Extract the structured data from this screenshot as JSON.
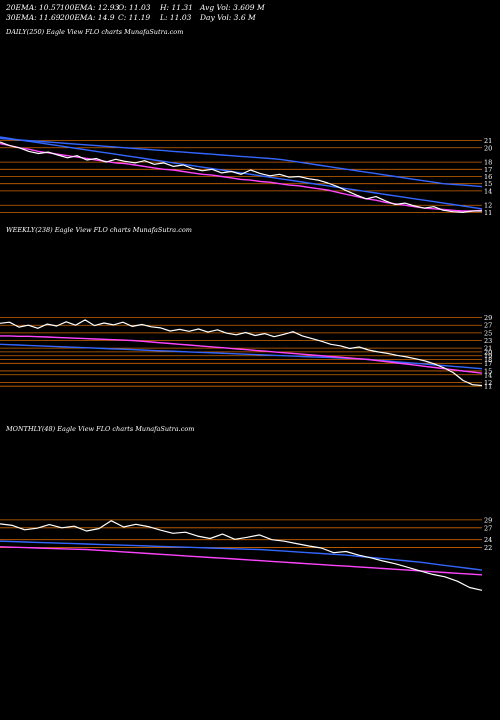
{
  "header": {
    "row1": [
      "20EMA: 10.57",
      "100EMA: 12.93",
      "O: 11.03",
      "H: 11.31",
      "Avg Vol: 3.609  M"
    ],
    "row2": [
      "30EMA: 11.69",
      "200EMA: 14.9",
      "C: 11.19",
      "L: 11.03",
      "Day Vol: 3.6  M"
    ]
  },
  "colors": {
    "background": "#000000",
    "price": "#ffffff",
    "ema_slow": "#ff44ff",
    "ema_mid": "#3366ff",
    "grid_line": "#cc6600"
  },
  "chart_data": [
    {
      "type": "line",
      "title": "DAILY(250) Eagle  View  FLO charts MunafaSutra.com",
      "y_tick_labels": [
        "21",
        "20",
        "18",
        "17",
        "16",
        "15",
        "14",
        "12",
        "11"
      ],
      "ylim": [
        10.5,
        21.5
      ],
      "series": [
        {
          "role": "price",
          "values": [
            20.8,
            20.3,
            20.0,
            19.5,
            19.2,
            19.4,
            19.0,
            18.6,
            18.9,
            18.3,
            18.5,
            18.0,
            18.4,
            18.1,
            17.9,
            18.2,
            17.7,
            17.9,
            17.4,
            17.6,
            17.1,
            16.8,
            17.0,
            16.5,
            16.7,
            16.3,
            16.9,
            16.4,
            16.1,
            16.3,
            15.9,
            16.0,
            15.7,
            15.5,
            15.1,
            14.6,
            14.0,
            13.4,
            12.9,
            13.2,
            12.6,
            12.1,
            12.3,
            11.9,
            11.6,
            11.8,
            11.3,
            11.1,
            11.0,
            11.2,
            11.19
          ]
        },
        {
          "role": "ema",
          "values": [
            21.5,
            21.3,
            21.1,
            20.9,
            20.7,
            20.5,
            20.3,
            20.1,
            19.9,
            19.7,
            19.5,
            19.3,
            19.1,
            18.9,
            18.7,
            18.5,
            18.3,
            18.1,
            17.9,
            17.7,
            17.5,
            17.3,
            17.1,
            16.9,
            16.7,
            16.5,
            16.3,
            16.1,
            15.9,
            15.7,
            15.5,
            15.3,
            15.1,
            14.9,
            14.7,
            14.5,
            14.3,
            14.1,
            13.9,
            13.7,
            13.5,
            13.3,
            13.1,
            12.9,
            12.7,
            12.5,
            12.3,
            12.1,
            11.9,
            11.7,
            11.5
          ]
        },
        {
          "role": "ema",
          "values": [
            20.6,
            20.3,
            20.0,
            19.8,
            19.5,
            19.3,
            19.1,
            18.9,
            18.7,
            18.5,
            18.3,
            18.1,
            17.9,
            17.8,
            17.6,
            17.4,
            17.2,
            17.0,
            16.9,
            16.7,
            16.5,
            16.3,
            16.2,
            16.0,
            15.8,
            15.6,
            15.5,
            15.3,
            15.2,
            15.0,
            14.8,
            14.7,
            14.5,
            14.3,
            14.1,
            13.8,
            13.5,
            13.2,
            12.9,
            12.7,
            12.4,
            12.2,
            12.0,
            11.8,
            11.6,
            11.5,
            11.4,
            11.3,
            11.2,
            11.2,
            11.3
          ]
        },
        {
          "role": "ema",
          "values": [
            21.3,
            21.2,
            21.1,
            21.0,
            20.9,
            20.8,
            20.7,
            20.6,
            20.5,
            20.4,
            20.3,
            20.2,
            20.1,
            20.0,
            19.9,
            19.8,
            19.7,
            19.6,
            19.5,
            19.4,
            19.3,
            19.2,
            19.1,
            19.0,
            18.9,
            18.8,
            18.7,
            18.6,
            18.5,
            18.4,
            18.2,
            18.0,
            17.8,
            17.6,
            17.4,
            17.2,
            17.0,
            16.8,
            16.6,
            16.4,
            16.2,
            16.0,
            15.8,
            15.6,
            15.4,
            15.2,
            15.0,
            14.9,
            14.8,
            14.7,
            14.6
          ]
        }
      ]
    },
    {
      "type": "line",
      "title": "WEEKLY(238) Eagle  View  FLO charts MunafaSutra.com",
      "y_tick_labels": [
        "29",
        "27",
        "25",
        "23",
        "21",
        "20",
        "19",
        "18",
        "17",
        "15",
        "14",
        "12",
        "11"
      ],
      "ylim": [
        10,
        31
      ],
      "series": [
        {
          "role": "price",
          "values": [
            27.5,
            27.8,
            26.5,
            27.0,
            26.2,
            27.3,
            26.8,
            27.9,
            27.0,
            28.4,
            26.9,
            27.6,
            27.1,
            27.8,
            26.7,
            27.2,
            26.6,
            26.3,
            25.5,
            25.9,
            25.4,
            26.0,
            25.2,
            25.8,
            24.9,
            24.5,
            25.1,
            24.3,
            24.8,
            24.0,
            24.6,
            25.3,
            24.2,
            23.5,
            22.8,
            22.0,
            21.6,
            20.9,
            21.3,
            20.5,
            20.0,
            19.6,
            19.1,
            18.7,
            18.2,
            17.6,
            16.8,
            15.8,
            14.5,
            12.5,
            11.4,
            11.19
          ]
        },
        {
          "role": "ema",
          "values": [
            22.0,
            21.9,
            21.8,
            21.7,
            21.6,
            21.5,
            21.4,
            21.3,
            21.2,
            21.1,
            21.0,
            20.9,
            20.8,
            20.7,
            20.6,
            20.5,
            20.4,
            20.3,
            20.2,
            20.1,
            20.0,
            19.9,
            19.8,
            19.7,
            19.6,
            19.5,
            19.4,
            19.3,
            19.2,
            19.1,
            19.0,
            18.9,
            18.8,
            18.7,
            18.6,
            18.5,
            18.4,
            18.3,
            18.2,
            18.0,
            17.8,
            17.6,
            17.4,
            17.2,
            17.0,
            16.8,
            16.6,
            16.4,
            16.2,
            16.0,
            15.8,
            15.6
          ]
        },
        {
          "role": "ema",
          "values": [
            24.2,
            24.2,
            24.1,
            24.1,
            24.0,
            23.9,
            23.8,
            23.7,
            23.6,
            23.5,
            23.4,
            23.3,
            23.2,
            23.1,
            23.0,
            22.8,
            22.6,
            22.4,
            22.2,
            22.0,
            21.8,
            21.6,
            21.4,
            21.2,
            21.0,
            20.8,
            20.6,
            20.4,
            20.2,
            20.0,
            19.8,
            19.6,
            19.4,
            19.2,
            19.0,
            18.8,
            18.6,
            18.4,
            18.2,
            18.0,
            17.7,
            17.4,
            17.1,
            16.8,
            16.5,
            16.2,
            15.9,
            15.6,
            15.3,
            15.0,
            14.7,
            14.4
          ]
        }
      ]
    },
    {
      "type": "line",
      "title": "MONTHLY(48) Eagle  View  FLO charts MunafaSutra.com",
      "y_tick_labels": [
        "29",
        "27",
        "24",
        "22"
      ],
      "ylim": [
        10,
        31
      ],
      "series": [
        {
          "role": "price",
          "values": [
            28.0,
            27.6,
            26.5,
            26.9,
            27.8,
            27.0,
            27.4,
            26.2,
            26.8,
            28.8,
            27.2,
            27.9,
            27.3,
            26.4,
            25.6,
            25.9,
            24.9,
            24.3,
            25.4,
            24.1,
            24.6,
            25.2,
            24.0,
            23.6,
            23.0,
            22.4,
            21.9,
            20.7,
            21.0,
            20.1,
            19.4,
            18.6,
            17.9,
            17.0,
            16.1,
            15.2,
            14.6,
            13.5,
            11.9,
            11.19
          ]
        },
        {
          "role": "ema",
          "values": [
            23.6,
            23.5,
            23.4,
            23.3,
            23.2,
            23.1,
            23.0,
            22.9,
            22.8,
            22.7,
            22.6,
            22.5,
            22.4,
            22.3,
            22.2,
            22.1,
            22.0,
            21.9,
            21.8,
            21.7,
            21.6,
            21.5,
            21.3,
            21.1,
            20.9,
            20.7,
            20.5,
            20.3,
            20.1,
            19.8,
            19.5,
            19.2,
            18.9,
            18.6,
            18.3,
            17.9,
            17.5,
            17.1,
            16.7,
            16.3
          ]
        },
        {
          "role": "ema",
          "values": [
            22.2,
            22.1,
            22.0,
            21.9,
            21.8,
            21.7,
            21.6,
            21.5,
            21.3,
            21.1,
            20.9,
            20.7,
            20.5,
            20.3,
            20.1,
            19.9,
            19.7,
            19.5,
            19.3,
            19.1,
            18.9,
            18.7,
            18.5,
            18.3,
            18.1,
            17.9,
            17.7,
            17.5,
            17.3,
            17.1,
            16.9,
            16.7,
            16.5,
            16.3,
            16.1,
            15.9,
            15.7,
            15.5,
            15.3,
            15.1
          ]
        }
      ]
    }
  ]
}
